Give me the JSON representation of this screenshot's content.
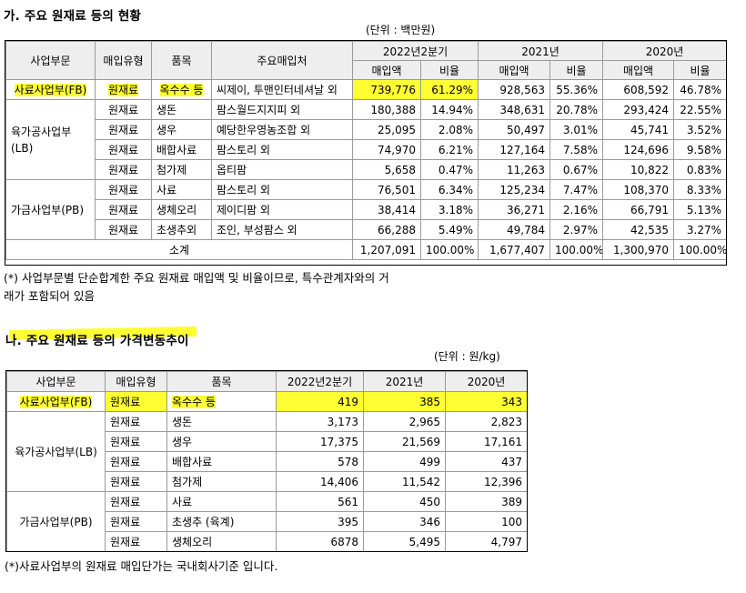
{
  "section1": {
    "title": "가. 주요 원재료 등의 현황",
    "unit": "(단위 : 백만원)",
    "headers": {
      "segment": "사업부문",
      "type": "매입유형",
      "item": "품목",
      "supplier": "주요매입처",
      "periods": [
        "2022년2분기",
        "2021년",
        "2020년"
      ],
      "amount": "매입액",
      "ratio": "비율"
    },
    "groups": [
      {
        "segment": "사료사업부(FB)",
        "rows": [
          {
            "type": "원재료",
            "item": "옥수수 등",
            "supplier": "씨제이, 투맨인터네셔날 외",
            "v": [
              "739,776",
              "61.29%",
              "928,563",
              "55.36%",
              "608,592",
              "46.78%"
            ]
          }
        ]
      },
      {
        "segment": "육가공사업부(LB)",
        "rows": [
          {
            "type": "원재료",
            "item": "생돈",
            "supplier": "팜스월드지지피 외",
            "v": [
              "180,388",
              "14.94%",
              "348,631",
              "20.78%",
              "293,424",
              "22.55%"
            ]
          },
          {
            "type": "원재료",
            "item": "생우",
            "supplier": "예당한우영농조합 외",
            "v": [
              "25,095",
              "2.08%",
              "50,497",
              "3.01%",
              "45,741",
              "3.52%"
            ]
          },
          {
            "type": "원재료",
            "item": "배합사료",
            "supplier": "팜스토리 외",
            "v": [
              "74,970",
              "6.21%",
              "127,164",
              "7.58%",
              "124,696",
              "9.58%"
            ]
          },
          {
            "type": "원재료",
            "item": "첨가제",
            "supplier": "옵티팜",
            "v": [
              "5,658",
              "0.47%",
              "11,263",
              "0.67%",
              "10,822",
              "0.83%"
            ]
          }
        ]
      },
      {
        "segment": "가금사업부(PB)",
        "rows": [
          {
            "type": "원재료",
            "item": "사료",
            "supplier": "팜스토리 외",
            "v": [
              "76,501",
              "6.34%",
              "125,234",
              "7.47%",
              "108,370",
              "8.33%"
            ]
          },
          {
            "type": "원재료",
            "item": "생체오리",
            "supplier": "제이디팜 외",
            "v": [
              "38,414",
              "3.18%",
              "36,271",
              "2.16%",
              "66,791",
              "5.13%"
            ]
          },
          {
            "type": "원재료",
            "item": "초생추외",
            "supplier": "조인, 부성팜스 외",
            "v": [
              "66,288",
              "5.49%",
              "49,784",
              "2.97%",
              "42,535",
              "3.27%"
            ]
          }
        ]
      }
    ],
    "total": {
      "label": "소계",
      "v": [
        "1,207,091",
        "100.00%",
        "1,677,407",
        "100.00%",
        "1,300,970",
        "100.00%"
      ]
    },
    "note_line1": "(*) 사업부문별 단순합계한 주요 원재료 매입액 및 비율이므로, 특수관계자와의 거",
    "note_line2": "래가 포함되어 있음"
  },
  "section2": {
    "title": "나. 주요 원재료 등의 가격변동추이",
    "unit": "(단위 : 원/kg)",
    "headers": {
      "segment": "사업부문",
      "type": "매입유형",
      "item": "품목",
      "periods": [
        "2022년2분기",
        "2021년",
        "2020년"
      ]
    },
    "groups": [
      {
        "segment": "사료사업부(FB)",
        "rows": [
          {
            "type": "원재료",
            "item": "옥수수 등",
            "v": [
              "419",
              "385",
              "343"
            ]
          }
        ]
      },
      {
        "segment": "육가공사업부(LB)",
        "rows": [
          {
            "type": "원재료",
            "item": "생돈",
            "v": [
              "3,173",
              "2,965",
              "2,823"
            ]
          },
          {
            "type": "원재료",
            "item": "생우",
            "v": [
              "17,375",
              "21,569",
              "17,161"
            ]
          },
          {
            "type": "원재료",
            "item": "배합사료",
            "v": [
              "578",
              "499",
              "437"
            ]
          },
          {
            "type": "원재료",
            "item": "첨가제",
            "v": [
              "14,406",
              "11,542",
              "12,396"
            ]
          }
        ]
      },
      {
        "segment": "가금사업부(PB)",
        "rows": [
          {
            "type": "원재료",
            "item": "사료",
            "v": [
              "561",
              "450",
              "389"
            ]
          },
          {
            "type": "원재료",
            "item": "초생추 (육계)",
            "v": [
              "395",
              "346",
              "100"
            ]
          },
          {
            "type": "원재료",
            "item": "생체오리",
            "v": [
              "6878",
              "5,495",
              "4,797"
            ]
          }
        ]
      }
    ],
    "note": "(*)사료사업부의 원재료 매입단가는 국내회사기준 입니다."
  },
  "highlight_color": "#ffff33"
}
